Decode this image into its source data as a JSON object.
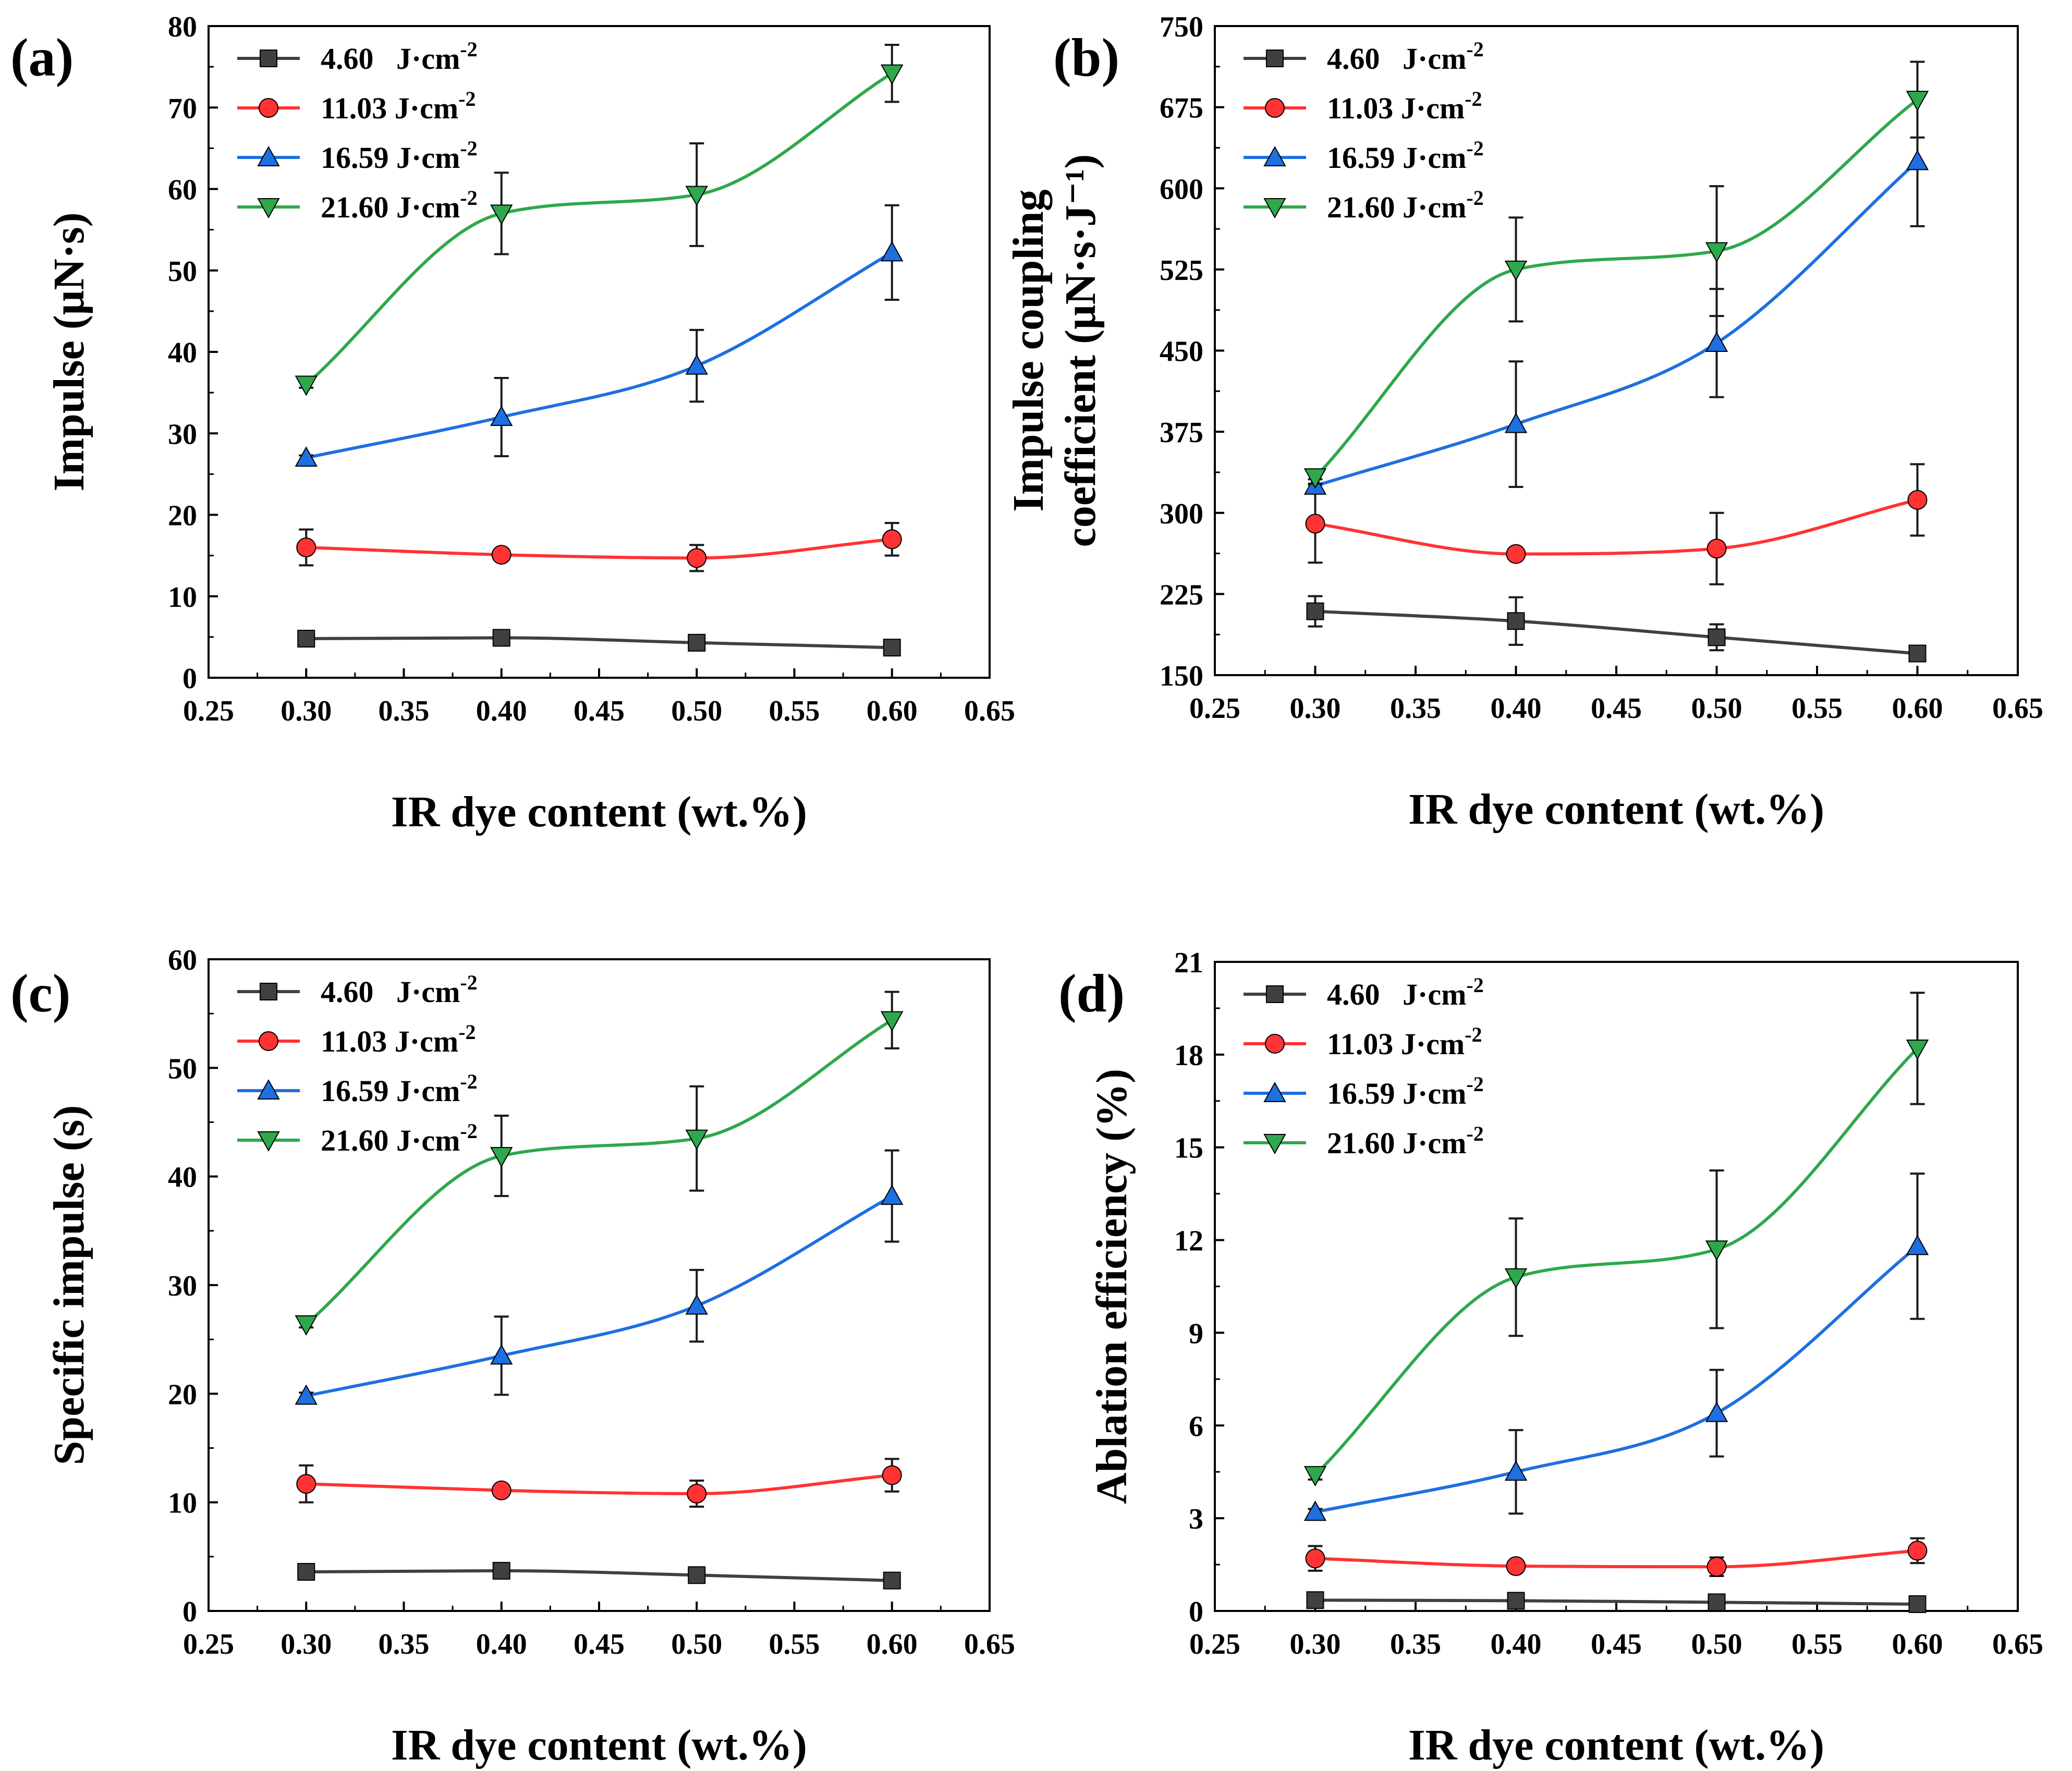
{
  "figure": {
    "description_free": true
  },
  "chart_data": [
    {
      "type": "line",
      "panel_label": "(a)",
      "title": "",
      "xlabel": "IR dye content (wt.%)",
      "ylabel": "Impulse (μN·s)",
      "ylabel_lines": [
        "Impulse (μN·s)"
      ],
      "xlim": [
        0.25,
        0.65
      ],
      "ylim": [
        0,
        80
      ],
      "xticks": [
        0.25,
        0.3,
        0.35,
        0.4,
        0.45,
        0.5,
        0.55,
        0.6,
        0.65
      ],
      "xtick_labels": [
        "0.25",
        "0.30",
        "0.35",
        "0.40",
        "0.45",
        "0.50",
        "0.55",
        "0.60",
        "0.65"
      ],
      "yticks": [
        0,
        10,
        20,
        30,
        40,
        50,
        60,
        70,
        80
      ],
      "ytick_labels": [
        "0",
        "10",
        "20",
        "30",
        "40",
        "50",
        "60",
        "70",
        "80"
      ],
      "legend_position": "top-left",
      "x": [
        0.3,
        0.4,
        0.5,
        0.6
      ],
      "series": [
        {
          "name": "4.60   J·cm",
          "sup": "-2",
          "color": "#404040",
          "marker": "square",
          "values": [
            4.8,
            4.9,
            4.3,
            3.7
          ],
          "errors": [
            0.5,
            0.7,
            0.6,
            0.5
          ]
        },
        {
          "name": "11.03 J·cm",
          "sup": "-2",
          "color": "#ff3333",
          "marker": "circle",
          "values": [
            16.0,
            15.1,
            14.7,
            17.0
          ],
          "errors": [
            2.2,
            0.4,
            1.6,
            2.0
          ]
        },
        {
          "name": "16.59 J·cm",
          "sup": "-2",
          "color": "#1e6fe0",
          "marker": "triangle-up",
          "values": [
            27.0,
            32.0,
            38.3,
            52.2
          ],
          "errors": [
            0.3,
            4.8,
            4.4,
            5.8
          ]
        },
        {
          "name": "21.60 J·cm",
          "sup": "-2",
          "color": "#2ea84a",
          "marker": "triangle-down",
          "values": [
            36.0,
            57.0,
            59.3,
            74.2
          ],
          "errors": [
            0.4,
            5.0,
            6.3,
            3.5
          ]
        }
      ]
    },
    {
      "type": "line",
      "panel_label": "(b)",
      "title": "",
      "xlabel": "IR dye content (wt.%)",
      "ylabel": "Impulse  coupling coefficient (μN·s·J⁻¹)",
      "ylabel_lines": [
        "Impulse  coupling",
        "coefficient (μN·s·J⁻¹)"
      ],
      "xlim": [
        0.25,
        0.65
      ],
      "ylim": [
        150,
        750
      ],
      "xticks": [
        0.25,
        0.3,
        0.35,
        0.4,
        0.45,
        0.5,
        0.55,
        0.6,
        0.65
      ],
      "xtick_labels": [
        "0.25",
        "0.30",
        "0.35",
        "0.40",
        "0.45",
        "0.50",
        "0.55",
        "0.60",
        "0.65"
      ],
      "yticks": [
        150,
        225,
        300,
        375,
        450,
        525,
        600,
        675,
        750
      ],
      "ytick_labels": [
        "150",
        "225",
        "300",
        "375",
        "450",
        "525",
        "600",
        "675",
        "750"
      ],
      "legend_position": "top-left",
      "x": [
        0.3,
        0.4,
        0.5,
        0.6
      ],
      "series": [
        {
          "name": "4.60   J·cm",
          "sup": "-2",
          "color": "#404040",
          "marker": "square",
          "values": [
            209,
            200,
            185,
            170
          ],
          "errors": [
            14,
            22,
            12,
            5
          ]
        },
        {
          "name": "11.03 J·cm",
          "sup": "-2",
          "color": "#ff3333",
          "marker": "circle",
          "values": [
            290,
            262,
            267,
            312
          ],
          "errors": [
            36,
            3,
            33,
            33
          ]
        },
        {
          "name": "16.59 J·cm",
          "sup": "-2",
          "color": "#1e6fe0",
          "marker": "triangle-up",
          "values": [
            325,
            382,
            457,
            625
          ],
          "errors": [
            6,
            58,
            50,
            60
          ]
        },
        {
          "name": "21.60 J·cm",
          "sup": "-2",
          "color": "#2ea84a",
          "marker": "triangle-down",
          "values": [
            333,
            525,
            542,
            682
          ],
          "errors": [
            6,
            48,
            60,
            35
          ]
        }
      ]
    },
    {
      "type": "line",
      "panel_label": "(c)",
      "title": "",
      "xlabel": "IR dye content (wt.%)",
      "ylabel": "Specific impulse (s)",
      "ylabel_lines": [
        "Specific impulse (s)"
      ],
      "xlim": [
        0.25,
        0.65
      ],
      "ylim": [
        0,
        60
      ],
      "xticks": [
        0.25,
        0.3,
        0.35,
        0.4,
        0.45,
        0.5,
        0.55,
        0.6,
        0.65
      ],
      "xtick_labels": [
        "0.25",
        "0.30",
        "0.35",
        "0.40",
        "0.45",
        "0.50",
        "0.55",
        "0.60",
        "0.65"
      ],
      "yticks": [
        0,
        10,
        20,
        30,
        40,
        50,
        60
      ],
      "ytick_labels": [
        "0",
        "10",
        "20",
        "30",
        "40",
        "50",
        "60"
      ],
      "legend_position": "top-left",
      "x": [
        0.3,
        0.4,
        0.5,
        0.6
      ],
      "series": [
        {
          "name": "4.60   J·cm",
          "sup": "-2",
          "color": "#404040",
          "marker": "square",
          "values": [
            3.6,
            3.7,
            3.3,
            2.8
          ],
          "errors": [
            0.5,
            0.6,
            0.5,
            0.4
          ]
        },
        {
          "name": "11.03 J·cm",
          "sup": "-2",
          "color": "#ff3333",
          "marker": "circle",
          "values": [
            11.7,
            11.1,
            10.8,
            12.5
          ],
          "errors": [
            1.7,
            0.3,
            1.2,
            1.5
          ]
        },
        {
          "name": "16.59 J·cm",
          "sup": "-2",
          "color": "#1e6fe0",
          "marker": "triangle-up",
          "values": [
            19.8,
            23.5,
            28.1,
            38.2
          ],
          "errors": [
            0.3,
            3.6,
            3.3,
            4.2
          ]
        },
        {
          "name": "21.60 J·cm",
          "sup": "-2",
          "color": "#2ea84a",
          "marker": "triangle-down",
          "values": [
            26.4,
            41.9,
            43.5,
            54.4
          ],
          "errors": [
            0.3,
            3.7,
            4.8,
            2.6
          ]
        }
      ]
    },
    {
      "type": "line",
      "panel_label": "(d)",
      "title": "",
      "xlabel": "IR dye content (wt.%)",
      "ylabel": "Ablation efficiency (%)",
      "ylabel_lines": [
        "Ablation efficiency (%)"
      ],
      "xlim": [
        0.25,
        0.65
      ],
      "ylim": [
        0,
        21
      ],
      "xticks": [
        0.25,
        0.3,
        0.35,
        0.4,
        0.45,
        0.5,
        0.55,
        0.6,
        0.65
      ],
      "xtick_labels": [
        "0.25",
        "0.30",
        "0.35",
        "0.40",
        "0.45",
        "0.50",
        "0.55",
        "0.60",
        "0.65"
      ],
      "yticks": [
        0,
        3,
        6,
        9,
        12,
        15,
        18,
        21
      ],
      "ytick_labels": [
        "0",
        "3",
        "6",
        "9",
        "12",
        "15",
        "18",
        "21"
      ],
      "legend_position": "top-left",
      "x": [
        0.3,
        0.4,
        0.5,
        0.6
      ],
      "series": [
        {
          "name": "4.60   J·cm",
          "sup": "-2",
          "color": "#404040",
          "marker": "square",
          "values": [
            0.35,
            0.33,
            0.28,
            0.22
          ],
          "errors": [
            0.06,
            0.06,
            0.05,
            0.04
          ]
        },
        {
          "name": "11.03 J·cm",
          "sup": "-2",
          "color": "#ff3333",
          "marker": "circle",
          "values": [
            1.7,
            1.45,
            1.43,
            1.95
          ],
          "errors": [
            0.4,
            0.05,
            0.3,
            0.4
          ]
        },
        {
          "name": "16.59 J·cm",
          "sup": "-2",
          "color": "#1e6fe0",
          "marker": "triangle-up",
          "values": [
            3.2,
            4.5,
            6.4,
            11.8
          ],
          "errors": [
            0.1,
            1.35,
            1.4,
            2.35
          ]
        },
        {
          "name": "21.60 J·cm",
          "sup": "-2",
          "color": "#2ea84a",
          "marker": "triangle-down",
          "values": [
            4.4,
            10.8,
            11.7,
            18.2
          ],
          "errors": [
            0.15,
            1.9,
            2.55,
            1.8
          ]
        }
      ]
    }
  ]
}
